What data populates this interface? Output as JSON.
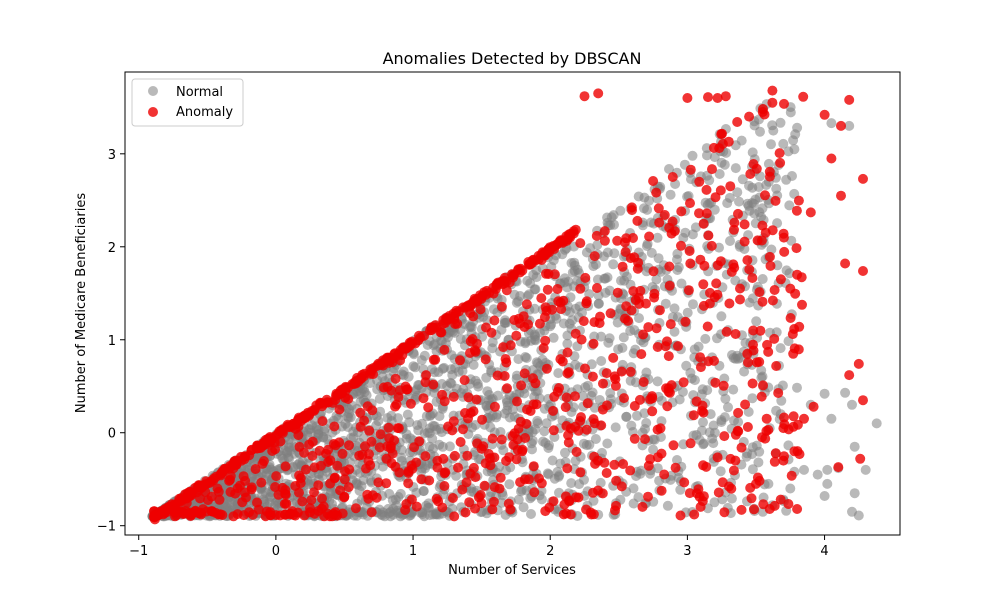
{
  "chart_data": {
    "type": "scatter",
    "title": "Anomalies Detected by DBSCAN",
    "xlabel": "Number of Services",
    "ylabel": "Number of Medicare Beneficiaries",
    "xlim": [
      -1.1,
      4.55
    ],
    "ylim": [
      -1.1,
      3.88
    ],
    "xticks": [
      -1,
      0,
      1,
      2,
      3,
      4
    ],
    "yticks": [
      -1,
      0,
      1,
      2,
      3
    ],
    "grid": false,
    "legend_position": "top-left",
    "domain": {
      "min": -0.9,
      "max": 3.68
    },
    "series": [
      {
        "name": "Normal",
        "color": "#808080",
        "opacity": 0.55,
        "points": [
          [
            4.05,
            3.33
          ],
          [
            4.18,
            3.3
          ],
          [
            3.8,
            3.28
          ],
          [
            3.78,
            3.05
          ],
          [
            3.72,
            2.72
          ],
          [
            4.0,
            0.42
          ],
          [
            4.15,
            0.43
          ],
          [
            4.2,
            0.3
          ],
          [
            4.22,
            -0.15
          ],
          [
            4.3,
            -0.4
          ],
          [
            4.1,
            -0.38
          ],
          [
            4.02,
            -0.4
          ],
          [
            3.95,
            -0.45
          ],
          [
            3.85,
            -0.4
          ],
          [
            3.78,
            -0.42
          ],
          [
            4.0,
            -0.68
          ],
          [
            4.02,
            -0.55
          ],
          [
            4.22,
            -0.65
          ],
          [
            4.2,
            -0.85
          ],
          [
            4.25,
            -0.89
          ],
          [
            3.75,
            -0.6
          ],
          [
            3.7,
            -0.72
          ],
          [
            3.72,
            -0.84
          ],
          [
            3.62,
            -0.78
          ],
          [
            3.55,
            -0.85
          ],
          [
            4.38,
            0.1
          ],
          [
            4.05,
            0.15
          ],
          [
            3.9,
            0.3
          ],
          [
            3.68,
            0.2
          ],
          [
            3.6,
            0.05
          ]
        ]
      },
      {
        "name": "Anomaly",
        "color": "#ee0000",
        "opacity": 0.8,
        "points": [
          [
            4.0,
            3.42
          ],
          [
            4.12,
            3.3
          ],
          [
            4.18,
            3.58
          ],
          [
            4.05,
            2.95
          ],
          [
            4.12,
            2.55
          ],
          [
            4.28,
            2.73
          ],
          [
            3.9,
            2.37
          ],
          [
            4.15,
            1.82
          ],
          [
            4.28,
            1.74
          ],
          [
            3.8,
            1.7
          ],
          [
            3.75,
            1.55
          ],
          [
            4.18,
            0.62
          ],
          [
            4.25,
            0.74
          ],
          [
            4.28,
            0.35
          ],
          [
            4.26,
            -0.28
          ],
          [
            4.1,
            -0.37
          ],
          [
            3.92,
            0.28
          ],
          [
            3.85,
            0.15
          ],
          [
            3.7,
            0.05
          ],
          [
            3.78,
            -0.2
          ],
          [
            3.8,
            -0.82
          ],
          [
            3.7,
            -0.3
          ],
          [
            3.62,
            3.68
          ],
          [
            3.62,
            3.55
          ],
          [
            3.55,
            3.45
          ],
          [
            3.45,
            3.4
          ],
          [
            3.28,
            3.62
          ],
          [
            3.22,
            3.6
          ],
          [
            3.15,
            3.61
          ],
          [
            3.0,
            3.6
          ],
          [
            2.35,
            3.65
          ],
          [
            2.25,
            3.62
          ],
          [
            3.35,
            -0.3
          ],
          [
            3.05,
            -0.88
          ],
          [
            2.95,
            -0.89
          ],
          [
            2.3,
            -0.88
          ],
          [
            2.15,
            -0.88
          ],
          [
            1.3,
            -0.9
          ],
          [
            3.6,
            -0.82
          ],
          [
            3.5,
            -0.55
          ]
        ]
      }
    ]
  }
}
